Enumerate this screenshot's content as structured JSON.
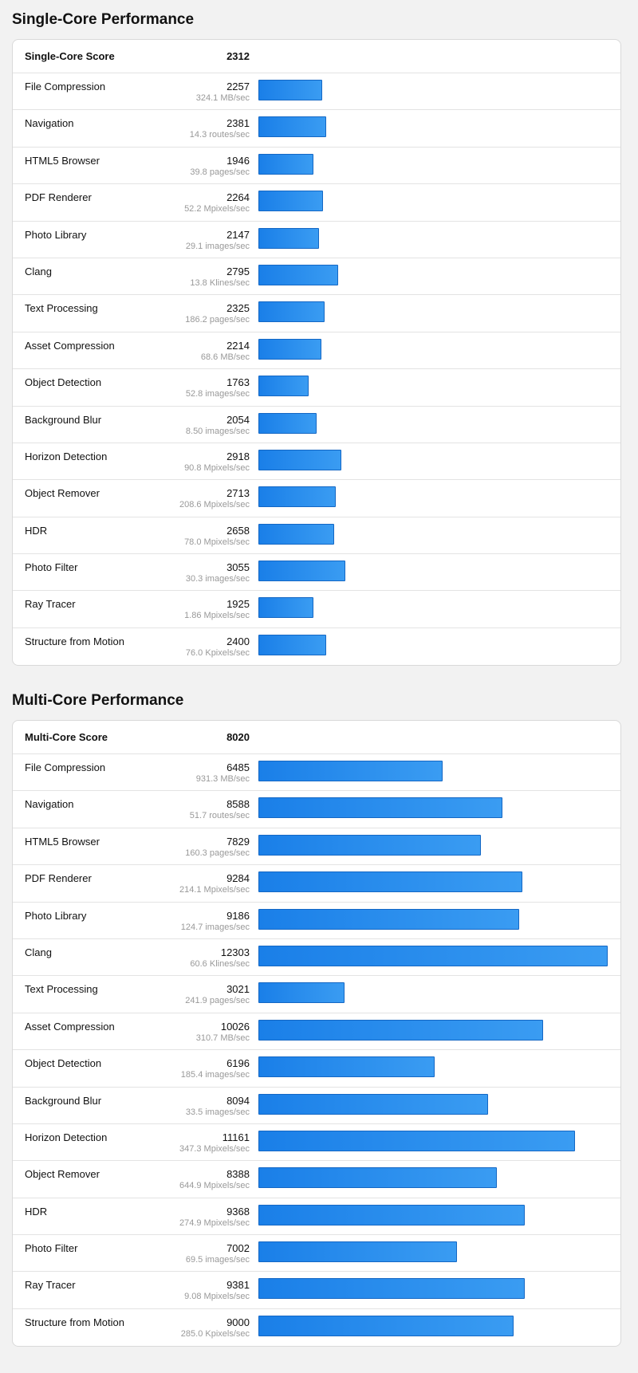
{
  "sections": [
    {
      "title": "Single-Core Performance",
      "score_label": "Single-Core Score",
      "score": "2312",
      "max_scale": 12303,
      "items": [
        {
          "name": "File Compression",
          "score": 2257,
          "unit": "324.1 MB/sec"
        },
        {
          "name": "Navigation",
          "score": 2381,
          "unit": "14.3 routes/sec"
        },
        {
          "name": "HTML5 Browser",
          "score": 1946,
          "unit": "39.8 pages/sec"
        },
        {
          "name": "PDF Renderer",
          "score": 2264,
          "unit": "52.2 Mpixels/sec"
        },
        {
          "name": "Photo Library",
          "score": 2147,
          "unit": "29.1 images/sec"
        },
        {
          "name": "Clang",
          "score": 2795,
          "unit": "13.8 Klines/sec"
        },
        {
          "name": "Text Processing",
          "score": 2325,
          "unit": "186.2 pages/sec"
        },
        {
          "name": "Asset Compression",
          "score": 2214,
          "unit": "68.6 MB/sec"
        },
        {
          "name": "Object Detection",
          "score": 1763,
          "unit": "52.8 images/sec"
        },
        {
          "name": "Background Blur",
          "score": 2054,
          "unit": "8.50 images/sec"
        },
        {
          "name": "Horizon Detection",
          "score": 2918,
          "unit": "90.8 Mpixels/sec"
        },
        {
          "name": "Object Remover",
          "score": 2713,
          "unit": "208.6 Mpixels/sec"
        },
        {
          "name": "HDR",
          "score": 2658,
          "unit": "78.0 Mpixels/sec"
        },
        {
          "name": "Photo Filter",
          "score": 3055,
          "unit": "30.3 images/sec"
        },
        {
          "name": "Ray Tracer",
          "score": 1925,
          "unit": "1.86 Mpixels/sec"
        },
        {
          "name": "Structure from Motion",
          "score": 2400,
          "unit": "76.0 Kpixels/sec"
        }
      ]
    },
    {
      "title": "Multi-Core Performance",
      "score_label": "Multi-Core Score",
      "score": "8020",
      "max_scale": 12303,
      "items": [
        {
          "name": "File Compression",
          "score": 6485,
          "unit": "931.3 MB/sec"
        },
        {
          "name": "Navigation",
          "score": 8588,
          "unit": "51.7 routes/sec"
        },
        {
          "name": "HTML5 Browser",
          "score": 7829,
          "unit": "160.3 pages/sec"
        },
        {
          "name": "PDF Renderer",
          "score": 9284,
          "unit": "214.1 Mpixels/sec"
        },
        {
          "name": "Photo Library",
          "score": 9186,
          "unit": "124.7 images/sec"
        },
        {
          "name": "Clang",
          "score": 12303,
          "unit": "60.6 Klines/sec"
        },
        {
          "name": "Text Processing",
          "score": 3021,
          "unit": "241.9 pages/sec"
        },
        {
          "name": "Asset Compression",
          "score": 10026,
          "unit": "310.7 MB/sec"
        },
        {
          "name": "Object Detection",
          "score": 6196,
          "unit": "185.4 images/sec"
        },
        {
          "name": "Background Blur",
          "score": 8094,
          "unit": "33.5 images/sec"
        },
        {
          "name": "Horizon Detection",
          "score": 11161,
          "unit": "347.3 Mpixels/sec"
        },
        {
          "name": "Object Remover",
          "score": 8388,
          "unit": "644.9 Mpixels/sec"
        },
        {
          "name": "HDR",
          "score": 9368,
          "unit": "274.9 Mpixels/sec"
        },
        {
          "name": "Photo Filter",
          "score": 7002,
          "unit": "69.5 images/sec"
        },
        {
          "name": "Ray Tracer",
          "score": 9381,
          "unit": "9.08 Mpixels/sec"
        },
        {
          "name": "Structure from Motion",
          "score": 9000,
          "unit": "285.0 Kpixels/sec"
        }
      ]
    }
  ],
  "colors": {
    "bar_start": "#1a7fe8",
    "bar_end": "#3a9cf2",
    "bar_border": "#1467c4"
  }
}
